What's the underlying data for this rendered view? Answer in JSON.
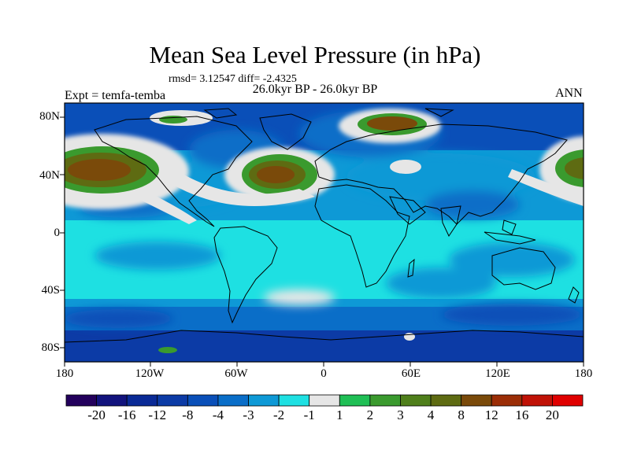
{
  "title": "Mean Sea Level Pressure (in hPa)",
  "stats": "rmsd= 3.12547 diff= -2.4325",
  "period": "26.0kyr BP - 26.0kyr BP",
  "experiment": "Expt = temfa-temba",
  "season": "ANN",
  "map_data": {
    "projection": "cylindrical equidistant",
    "lat_range": [
      -90,
      90
    ],
    "lon_range": [
      -180,
      180
    ],
    "y_ticks": [
      "80N",
      "40N",
      "0",
      "40S",
      "80S"
    ],
    "x_ticks": [
      "180",
      "120W",
      "60W",
      "0",
      "60E",
      "120E",
      "180"
    ]
  },
  "colorbar": {
    "labels": [
      "-20",
      "-16",
      "-12",
      "-8",
      "-4",
      "-3",
      "-2",
      "-1",
      "1",
      "2",
      "3",
      "4",
      "8",
      "12",
      "16",
      "20"
    ],
    "colors": [
      "#23005c",
      "#12137d",
      "#0a2a96",
      "#0c3ba6",
      "#0a4fb8",
      "#0a6ec8",
      "#0e99d6",
      "#1ee0e2",
      "#e6e6e6",
      "#1fbf55",
      "#3a9a2e",
      "#4f7f1b",
      "#5e6b12",
      "#7a4a0a",
      "#9b2d06",
      "#c01206",
      "#e00000"
    ]
  }
}
